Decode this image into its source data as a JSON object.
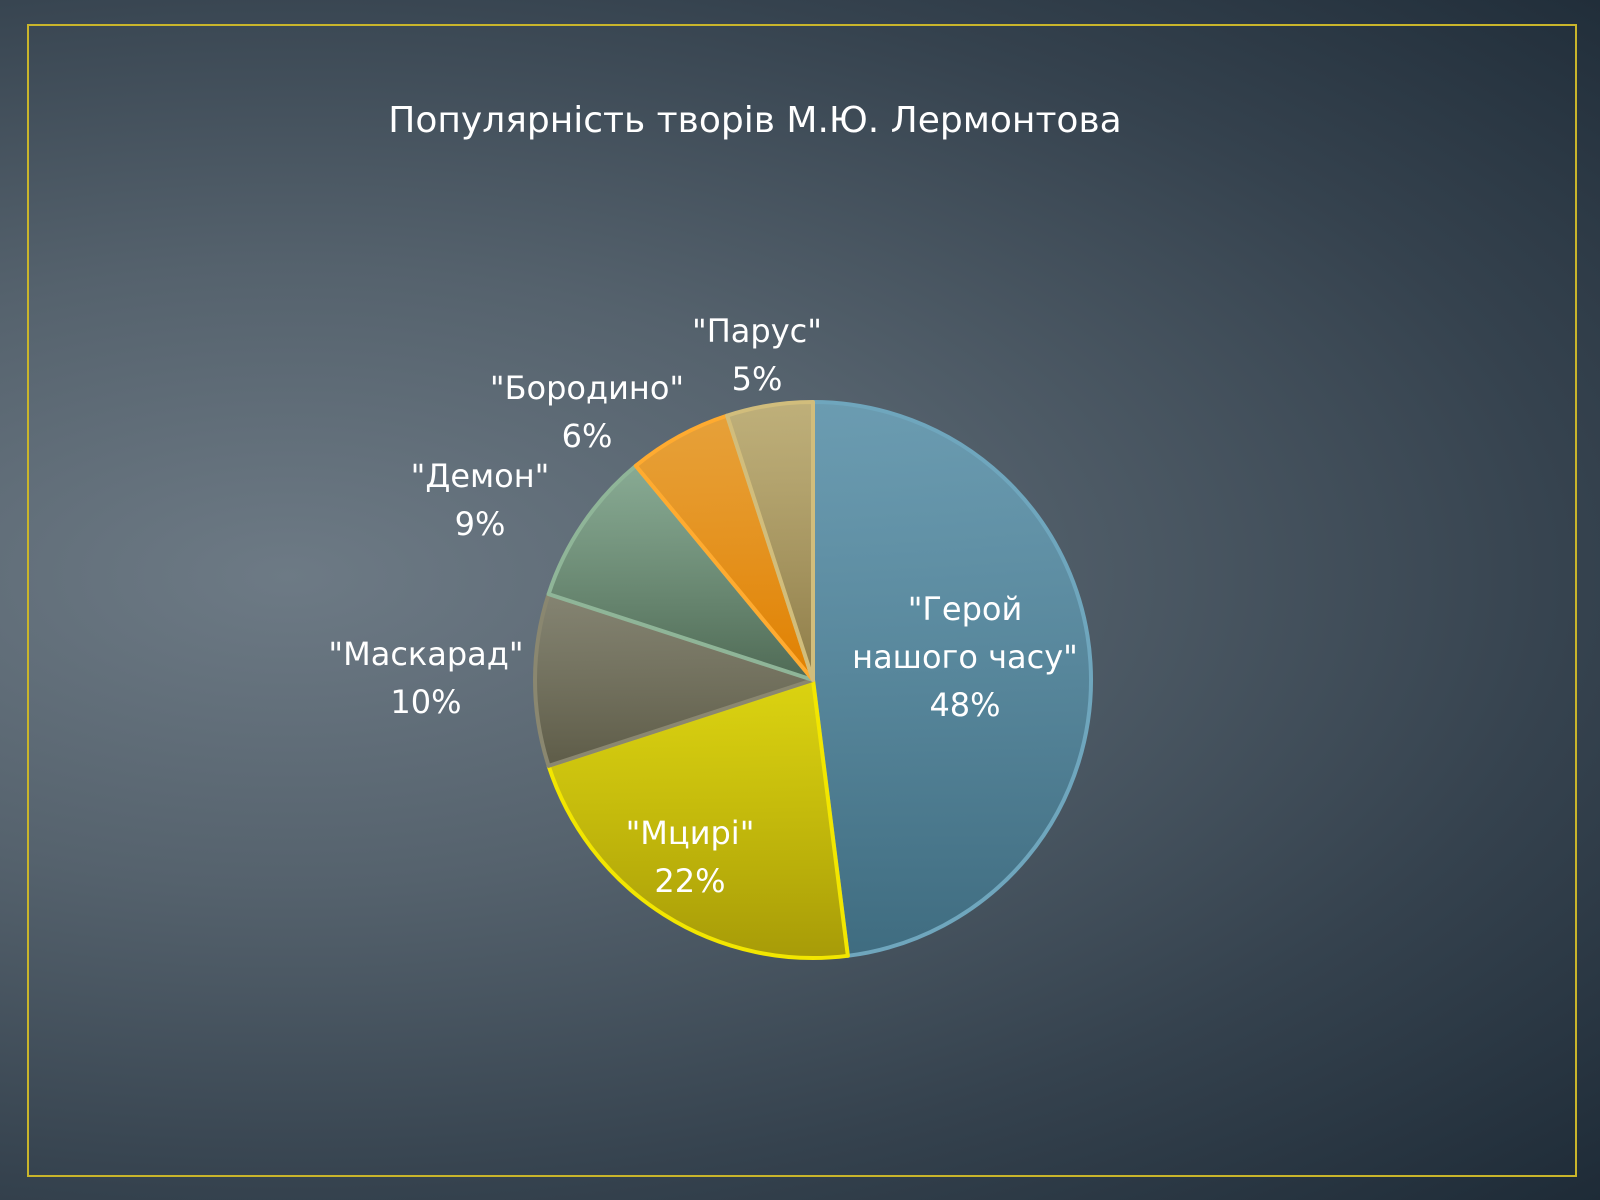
{
  "chart_data": {
    "type": "pie",
    "title": "Популярність творів М.Ю. Лермонтова",
    "slices": [
      {
        "label": "\"Герой нашого часу\"",
        "label_lines": [
          "\"Герой",
          "нашого часу\""
        ],
        "percent_label": "48%",
        "value": 48,
        "color": "#3f6c80",
        "border": "#6fa6bd"
      },
      {
        "label": "\"Мцирі\"",
        "label_lines": [
          "\"Мцирі\""
        ],
        "percent_label": "22%",
        "value": 22,
        "color": "#a79b08",
        "border": "#f2e600"
      },
      {
        "label": "\"Маскарад\"",
        "label_lines": [
          "\"Маскарад\""
        ],
        "percent_label": "10%",
        "value": 10,
        "color": "#5e5c48",
        "border": "#8a8770"
      },
      {
        "label": "\"Демон\"",
        "label_lines": [
          "\"Демон\""
        ],
        "percent_label": "9%",
        "value": 9,
        "color": "#4f6a55",
        "border": "#8fb598"
      },
      {
        "label": "\"Бородино\"",
        "label_lines": [
          "\"Бородино\""
        ],
        "percent_label": "6%",
        "value": 6,
        "color": "#e08000",
        "border": "#ffab30"
      },
      {
        "label": "\"Парус\"",
        "label_lines": [
          "\"Парус\""
        ],
        "percent_label": "5%",
        "value": 5,
        "color": "#8e7c48",
        "border": "#d1bd7c"
      }
    ],
    "legend": "none",
    "label_placement": [
      "inside",
      "inside",
      "outside",
      "outside",
      "outside",
      "outside"
    ]
  }
}
